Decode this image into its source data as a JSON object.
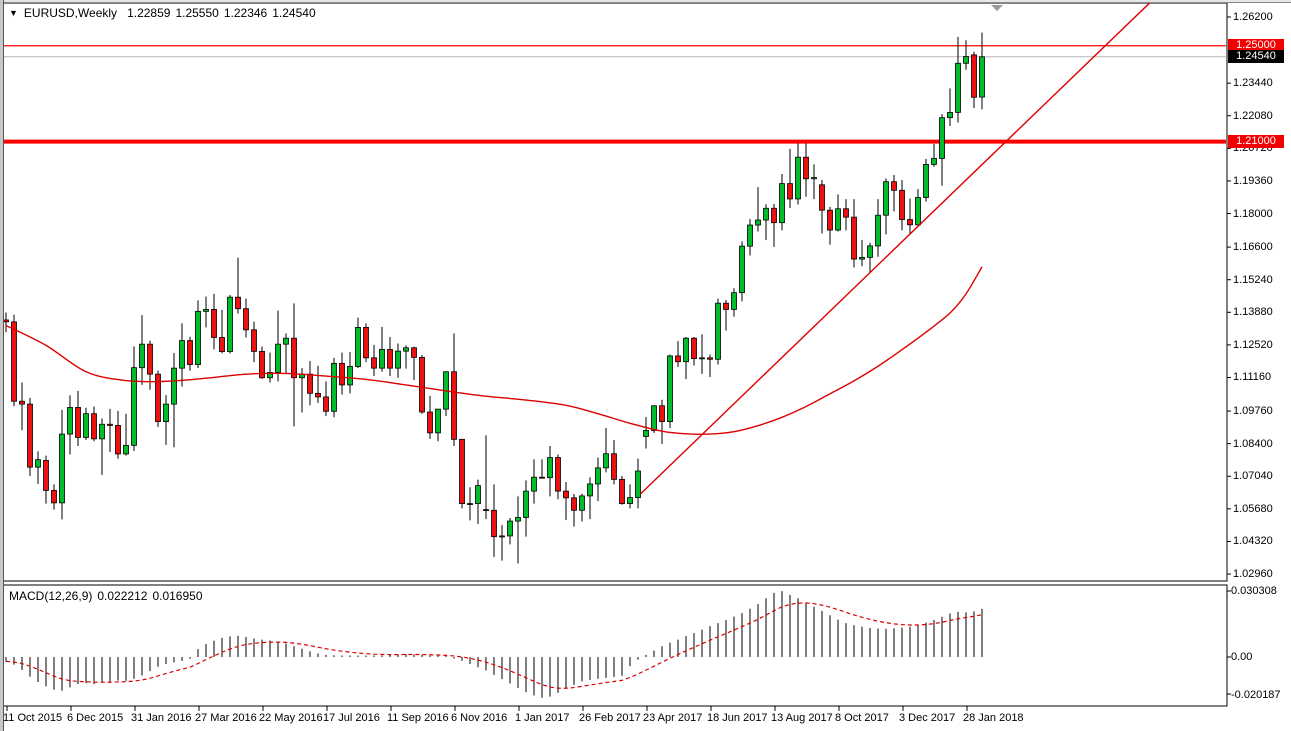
{
  "header": {
    "collapse_icon": "▼",
    "symbol_period": "EURUSD,Weekly",
    "open": "1.22859",
    "high": "1.25550",
    "low": "1.22346",
    "close": "1.24540"
  },
  "macd_panel": {
    "label": "MACD(12,26,9)",
    "macd_value": "0.022212",
    "signal_value": "0.016950",
    "axis_labels": [
      "0.030308",
      "0.00",
      "-0.020187"
    ]
  },
  "price_axis": {
    "labels": [
      "1.26200",
      "1.23440",
      "1.22080",
      "1.20720",
      "1.19360",
      "1.18000",
      "1.16600",
      "1.15240",
      "1.13880",
      "1.12520",
      "1.11160",
      "1.09760",
      "1.08400",
      "1.07040",
      "1.05680",
      "1.04320",
      "1.02960"
    ],
    "badges": [
      {
        "text": "1.25000",
        "type": "red"
      },
      {
        "text": "1.24540",
        "type": "black"
      },
      {
        "text": "1.21000",
        "type": "red"
      }
    ]
  },
  "time_axis": {
    "labels": [
      "11 Oct 2015",
      "6 Dec 2015",
      "31 Jan 2016",
      "27 Mar 2016",
      "22 May 2016",
      "17 Jul 2016",
      "11 Sep 2016",
      "6 Nov 2016",
      "1 Jan 2017",
      "26 Feb 2017",
      "23 Apr 2017",
      "18 Jun 2017",
      "13 Aug 2017",
      "8 Oct 2017",
      "3 Dec 2017",
      "28 Jan 2018"
    ]
  },
  "colors": {
    "bull": "#00be2b",
    "bear": "#ee1111",
    "outline": "#000000",
    "line_red": "#ff0000",
    "indicator_red": "#dd0000",
    "current_price_gray": "#b8b8b8",
    "histogram": "#000000",
    "badge_red": "#f00000",
    "badge_black": "#000000"
  },
  "chart_data": {
    "type": "candlestick",
    "title": "EURUSD Weekly with MACD(12,26,9)",
    "price_axis_range": [
      1.0296,
      1.262
    ],
    "macd_axis_range": [
      -0.020187,
      0.030308
    ],
    "grid": false,
    "horizontal_lines": [
      {
        "price": 1.25,
        "style": "thin-red"
      },
      {
        "price": 1.21,
        "style": "thick-red"
      },
      {
        "price": 1.2454,
        "style": "current-price-gray"
      }
    ],
    "trend_line": {
      "i1": 79.3,
      "p1": 1.063,
      "i2": 143.0,
      "p2": 1.268
    },
    "moving_average_points": [
      [
        0,
        1.1333
      ],
      [
        5,
        1.125
      ],
      [
        10,
        1.114
      ],
      [
        15,
        1.1103
      ],
      [
        20,
        1.11
      ],
      [
        25,
        1.1113
      ],
      [
        30,
        1.113
      ],
      [
        35,
        1.1133
      ],
      [
        40,
        1.1122
      ],
      [
        45,
        1.1108
      ],
      [
        50,
        1.1085
      ],
      [
        55,
        1.106
      ],
      [
        60,
        1.1038
      ],
      [
        65,
        1.1022
      ],
      [
        70,
        1.1
      ],
      [
        74,
        1.0965
      ],
      [
        78,
        1.0925
      ],
      [
        82,
        1.0892
      ],
      [
        85,
        1.0881
      ],
      [
        88,
        1.088
      ],
      [
        91,
        1.089
      ],
      [
        94,
        1.0915
      ],
      [
        97,
        1.095
      ],
      [
        100,
        1.0995
      ],
      [
        103,
        1.1048
      ],
      [
        106,
        1.1102
      ],
      [
        109,
        1.1163
      ],
      [
        112,
        1.1232
      ],
      [
        115,
        1.1305
      ],
      [
        118,
        1.1385
      ],
      [
        120,
        1.1465
      ],
      [
        122,
        1.1578
      ]
    ],
    "candles_ohlc": [
      [
        1.1356,
        1.1387,
        1.1305,
        1.1348
      ],
      [
        1.1348,
        1.1378,
        1.0996,
        1.1017
      ],
      [
        1.1017,
        1.1095,
        1.0896,
        1.1005
      ],
      [
        1.1005,
        1.1031,
        1.0705,
        1.0742
      ],
      [
        1.0742,
        1.0808,
        1.0672,
        1.0773
      ],
      [
        1.077,
        1.079,
        1.059,
        1.0645
      ],
      [
        1.0645,
        1.067,
        1.0565,
        1.0593
      ],
      [
        1.0593,
        1.0981,
        1.0524,
        1.088
      ],
      [
        1.088,
        1.1042,
        1.0795,
        1.0991
      ],
      [
        1.0991,
        1.106,
        1.083,
        1.0866
      ],
      [
        1.0866,
        1.099,
        1.0855,
        1.0965
      ],
      [
        1.0965,
        1.0995,
        1.085,
        1.086
      ],
      [
        1.086,
        1.0945,
        1.071,
        1.0921
      ],
      [
        1.0921,
        1.0985,
        1.0805,
        1.0916
      ],
      [
        1.0916,
        1.0977,
        1.0777,
        1.0797
      ],
      [
        1.0797,
        1.0965,
        1.079,
        1.0833
      ],
      [
        1.0833,
        1.1246,
        1.081,
        1.1157
      ],
      [
        1.1157,
        1.1376,
        1.1085,
        1.1255
      ],
      [
        1.1255,
        1.127,
        1.1065,
        1.113
      ],
      [
        1.113,
        1.1145,
        1.091,
        1.0932
      ],
      [
        1.0932,
        1.1043,
        1.0835,
        1.1005
      ],
      [
        1.1005,
        1.1218,
        1.0825,
        1.1155
      ],
      [
        1.1155,
        1.1342,
        1.1078,
        1.127
      ],
      [
        1.127,
        1.1286,
        1.1144,
        1.117
      ],
      [
        1.117,
        1.1438,
        1.1155,
        1.1392
      ],
      [
        1.1392,
        1.1454,
        1.1325,
        1.14
      ],
      [
        1.14,
        1.1465,
        1.1234,
        1.1283
      ],
      [
        1.1283,
        1.1398,
        1.1217,
        1.1224
      ],
      [
        1.1224,
        1.146,
        1.1216,
        1.1451
      ],
      [
        1.1451,
        1.1616,
        1.1383,
        1.1403
      ],
      [
        1.1403,
        1.1445,
        1.1283,
        1.1315
      ],
      [
        1.1315,
        1.1349,
        1.118,
        1.1225
      ],
      [
        1.1225,
        1.1245,
        1.111,
        1.1115
      ],
      [
        1.1115,
        1.122,
        1.1095,
        1.1137
      ],
      [
        1.1137,
        1.1395,
        1.11,
        1.1255
      ],
      [
        1.1255,
        1.13,
        1.113,
        1.128
      ],
      [
        1.128,
        1.1425,
        1.0912,
        1.1115
      ],
      [
        1.1115,
        1.1155,
        1.097,
        1.113
      ],
      [
        1.113,
        1.1185,
        1.1,
        1.105
      ],
      [
        1.105,
        1.1165,
        1.101,
        1.1035
      ],
      [
        1.1035,
        1.11,
        1.0955,
        1.0975
      ],
      [
        1.0975,
        1.1198,
        1.095,
        1.1175
      ],
      [
        1.1175,
        1.122,
        1.1045,
        1.1085
      ],
      [
        1.1085,
        1.1222,
        1.105,
        1.1162
      ],
      [
        1.1162,
        1.1366,
        1.1155,
        1.1325
      ],
      [
        1.1325,
        1.1342,
        1.118,
        1.1198
      ],
      [
        1.1198,
        1.1252,
        1.1122,
        1.1155
      ],
      [
        1.1155,
        1.1327,
        1.114,
        1.1233
      ],
      [
        1.1233,
        1.1285,
        1.1122,
        1.1155
      ],
      [
        1.1155,
        1.1258,
        1.1115,
        1.1226
      ],
      [
        1.1226,
        1.125,
        1.1153,
        1.124
      ],
      [
        1.124,
        1.1245,
        1.1105,
        1.12
      ],
      [
        1.12,
        1.121,
        1.0965,
        1.0972
      ],
      [
        1.0972,
        1.104,
        1.086,
        1.0885
      ],
      [
        1.0885,
        1.0945,
        1.085,
        1.0984
      ],
      [
        1.0984,
        1.1142,
        1.0955,
        1.114
      ],
      [
        1.114,
        1.13,
        1.083,
        1.0858
      ],
      [
        1.0858,
        1.086,
        1.057,
        1.059
      ],
      [
        1.059,
        1.0658,
        1.052,
        1.059
      ],
      [
        1.059,
        1.069,
        1.0505,
        1.0665
      ],
      [
        1.0565,
        1.0875,
        1.0525,
        1.0562
      ],
      [
        1.0562,
        1.067,
        1.0367,
        1.0452
      ],
      [
        1.0452,
        1.05,
        1.0352,
        1.0455
      ],
      [
        1.0455,
        1.053,
        1.042,
        1.0517
      ],
      [
        1.0517,
        1.062,
        1.034,
        1.0532
      ],
      [
        1.0532,
        1.0687,
        1.0452,
        1.0642
      ],
      [
        1.0642,
        1.0775,
        1.059,
        1.07
      ],
      [
        1.07,
        1.0775,
        1.0695,
        1.0698
      ],
      [
        1.0698,
        1.083,
        1.062,
        1.0782
      ],
      [
        1.0782,
        1.0795,
        1.0608,
        1.0642
      ],
      [
        1.0642,
        1.068,
        1.0521,
        1.0614
      ],
      [
        1.0614,
        1.063,
        1.0494,
        1.0562
      ],
      [
        1.0562,
        1.0631,
        1.0515,
        1.0622
      ],
      [
        1.0622,
        1.07,
        1.0525,
        1.0672
      ],
      [
        1.0672,
        1.0782,
        1.06,
        1.0739
      ],
      [
        1.0739,
        1.0906,
        1.072,
        1.0798
      ],
      [
        1.0798,
        1.0855,
        1.067,
        1.0691
      ],
      [
        1.0691,
        1.0705,
        1.0585,
        1.059
      ],
      [
        1.059,
        1.067,
        1.057,
        1.0615
      ],
      [
        1.0615,
        1.0778,
        1.057,
        1.0726
      ],
      [
        1.087,
        1.0951,
        1.082,
        1.0895
      ],
      [
        1.0895,
        1.1,
        1.0885,
        1.0998
      ],
      [
        1.0998,
        1.1023,
        1.0839,
        1.0932
      ],
      [
        1.0932,
        1.1212,
        1.0905,
        1.1206
      ],
      [
        1.1206,
        1.1268,
        1.116,
        1.1182
      ],
      [
        1.1182,
        1.1285,
        1.1109,
        1.128
      ],
      [
        1.128,
        1.1285,
        1.1166,
        1.1195
      ],
      [
        1.1195,
        1.1296,
        1.1131,
        1.1198
      ],
      [
        1.1198,
        1.1212,
        1.1118,
        1.1192
      ],
      [
        1.1192,
        1.1445,
        1.117,
        1.1426
      ],
      [
        1.1426,
        1.144,
        1.1312,
        1.14
      ],
      [
        1.14,
        1.1489,
        1.137,
        1.147
      ],
      [
        1.147,
        1.1684,
        1.1434,
        1.1664
      ],
      [
        1.1664,
        1.1777,
        1.1625,
        1.1752
      ],
      [
        1.1752,
        1.191,
        1.1725,
        1.1773
      ],
      [
        1.1773,
        1.1839,
        1.1689,
        1.1822
      ],
      [
        1.1822,
        1.184,
        1.1661,
        1.1762
      ],
      [
        1.1762,
        1.1965,
        1.173,
        1.1925
      ],
      [
        1.1925,
        1.207,
        1.1823,
        1.1861
      ],
      [
        1.1861,
        1.2092,
        1.1838,
        1.2035
      ],
      [
        1.2035,
        1.2092,
        1.187,
        1.1945
      ],
      [
        1.1945,
        1.2005,
        1.186,
        1.195
      ],
      [
        1.192,
        1.194,
        1.1717,
        1.1814
      ],
      [
        1.1814,
        1.1828,
        1.167,
        1.1731
      ],
      [
        1.1731,
        1.188,
        1.1725,
        1.182
      ],
      [
        1.182,
        1.186,
        1.173,
        1.1785
      ],
      [
        1.1785,
        1.186,
        1.1575,
        1.161
      ],
      [
        1.161,
        1.169,
        1.158,
        1.1617
      ],
      [
        1.1617,
        1.1678,
        1.1553,
        1.1665
      ],
      [
        1.1665,
        1.186,
        1.162,
        1.1793
      ],
      [
        1.1793,
        1.1946,
        1.1713,
        1.1933
      ],
      [
        1.1933,
        1.1961,
        1.1809,
        1.1897
      ],
      [
        1.1897,
        1.194,
        1.173,
        1.1775
      ],
      [
        1.1775,
        1.1862,
        1.1717,
        1.1753
      ],
      [
        1.1753,
        1.1902,
        1.175,
        1.1867
      ],
      [
        1.1867,
        1.2028,
        1.185,
        1.2005
      ],
      [
        1.2005,
        1.209,
        1.1995,
        1.203
      ],
      [
        1.203,
        1.2215,
        1.1916,
        1.22
      ],
      [
        1.22,
        1.2322,
        1.2165,
        1.2222
      ],
      [
        1.2222,
        1.2537,
        1.218,
        1.2427
      ],
      [
        1.2427,
        1.2523,
        1.24,
        1.2455
      ],
      [
        1.2462,
        1.2475,
        1.224,
        1.2285
      ],
      [
        1.22859,
        1.2555,
        1.22346,
        1.2454
      ]
    ],
    "macd_histogram": [
      -0.002,
      -0.0035,
      -0.006,
      -0.009,
      -0.0115,
      -0.0135,
      -0.015,
      -0.0155,
      -0.014,
      -0.0125,
      -0.012,
      -0.0125,
      -0.0115,
      -0.0118,
      -0.0108,
      -0.011,
      -0.01,
      -0.0085,
      -0.0065,
      -0.0045,
      -0.0032,
      -0.0025,
      -0.0018,
      -0.0008,
      0.0036,
      0.006,
      0.0075,
      0.0088,
      0.0095,
      0.0098,
      0.0092,
      0.0085,
      0.008,
      0.0076,
      0.007,
      0.0062,
      0.005,
      0.0038,
      0.0026,
      0.0016,
      0.001,
      0.0008,
      0.0006,
      0.0004,
      0.0003,
      0.0003,
      0.0004,
      0.0006,
      0.0009,
      0.0011,
      0.0013,
      0.0012,
      0.001,
      0.0007,
      0.0004,
      0.0001,
      -0.0006,
      -0.0018,
      -0.0032,
      -0.0047,
      -0.0062,
      -0.0082,
      -0.0102,
      -0.0122,
      -0.0142,
      -0.0162,
      -0.0177,
      -0.0188,
      -0.0182,
      -0.0165,
      -0.0145,
      -0.0128,
      -0.0112,
      -0.0105,
      -0.01,
      -0.0096,
      -0.0092,
      -0.0087,
      -0.0042,
      -0.0012,
      0.001,
      0.003,
      0.005,
      0.0066,
      0.008,
      0.0096,
      0.011,
      0.0126,
      0.0142,
      0.0156,
      0.017,
      0.0186,
      0.0202,
      0.0222,
      0.0243,
      0.027,
      0.0295,
      0.0303,
      0.0286,
      0.027,
      0.0252,
      0.0232,
      0.0212,
      0.0192,
      0.0172,
      0.0156,
      0.0146,
      0.0139,
      0.0134,
      0.0131,
      0.013,
      0.0132,
      0.0135,
      0.014,
      0.0148,
      0.0158,
      0.017,
      0.0185,
      0.02,
      0.0208,
      0.0205,
      0.021,
      0.022212
    ],
    "macd_signal": "ema9-of-histogram",
    "legend_position": "none"
  }
}
